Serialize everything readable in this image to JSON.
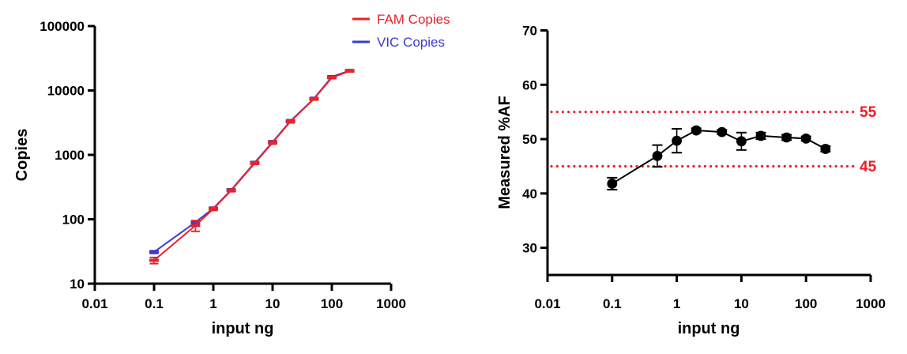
{
  "figure": {
    "background": "#ffffff"
  },
  "legend": {
    "items": [
      {
        "label": "FAM Copies",
        "color": "#e8232a"
      },
      {
        "label": "VIC Copies",
        "color": "#3b3bd1"
      }
    ]
  },
  "chart_data": [
    {
      "type": "line",
      "title": "",
      "xlabel": "input ng",
      "ylabel": "Copies",
      "xscale": "log",
      "yscale": "log",
      "xlim": [
        0.01,
        1000
      ],
      "ylim": [
        10,
        100000
      ],
      "xticks": [
        "0.01",
        "0.1",
        "1",
        "10",
        "100",
        "1000"
      ],
      "yticks": [
        "10",
        "100",
        "1000",
        "10000",
        "100000"
      ],
      "grid": false,
      "legend_position": "top-right",
      "x": [
        0.1,
        0.5,
        1,
        2,
        5,
        10,
        20,
        50,
        100,
        200
      ],
      "series": [
        {
          "name": "VIC Copies",
          "color": "#3b3bd1",
          "marker": "dash",
          "values": [
            31,
            90,
            148,
            285,
            760,
            1580,
            3350,
            7500,
            16300,
            20400
          ],
          "errors": [
            1.5,
            5,
            6,
            12,
            30,
            80,
            160,
            300,
            600,
            600
          ]
        },
        {
          "name": "FAM Copies",
          "color": "#e8232a",
          "marker": "dash",
          "values": [
            23,
            80,
            145,
            280,
            745,
            1550,
            3300,
            7400,
            15800,
            20000
          ],
          "errors": [
            2.5,
            15,
            8,
            12,
            35,
            80,
            160,
            300,
            500,
            600
          ]
        }
      ]
    },
    {
      "type": "scatter",
      "title": "",
      "xlabel": "input ng",
      "ylabel": "Measured %AF",
      "xscale": "log",
      "yscale": "linear",
      "xlim": [
        0.01,
        1000
      ],
      "ylim": [
        25,
        70
      ],
      "xticks": [
        "0.01",
        "0.1",
        "1",
        "10",
        "100",
        "1000"
      ],
      "yticks": [
        "30",
        "40",
        "50",
        "60",
        "70"
      ],
      "grid": false,
      "x": [
        0.1,
        0.5,
        1,
        2,
        5,
        10,
        20,
        50,
        100,
        200
      ],
      "series": [
        {
          "name": "Measured %AF",
          "color": "#000000",
          "marker": "circle",
          "values": [
            41.8,
            46.9,
            49.7,
            51.6,
            51.3,
            49.6,
            50.6,
            50.3,
            50.1,
            48.2
          ],
          "errors": [
            1.1,
            2.0,
            2.2,
            0.4,
            0.4,
            1.6,
            0.6,
            0.5,
            0.4,
            0.5
          ]
        }
      ],
      "reference_lines": [
        {
          "value": 55,
          "label": "55",
          "color": "#ed1c24",
          "style": "dotted"
        },
        {
          "value": 45,
          "label": "45",
          "color": "#ed1c24",
          "style": "dotted"
        }
      ]
    }
  ]
}
